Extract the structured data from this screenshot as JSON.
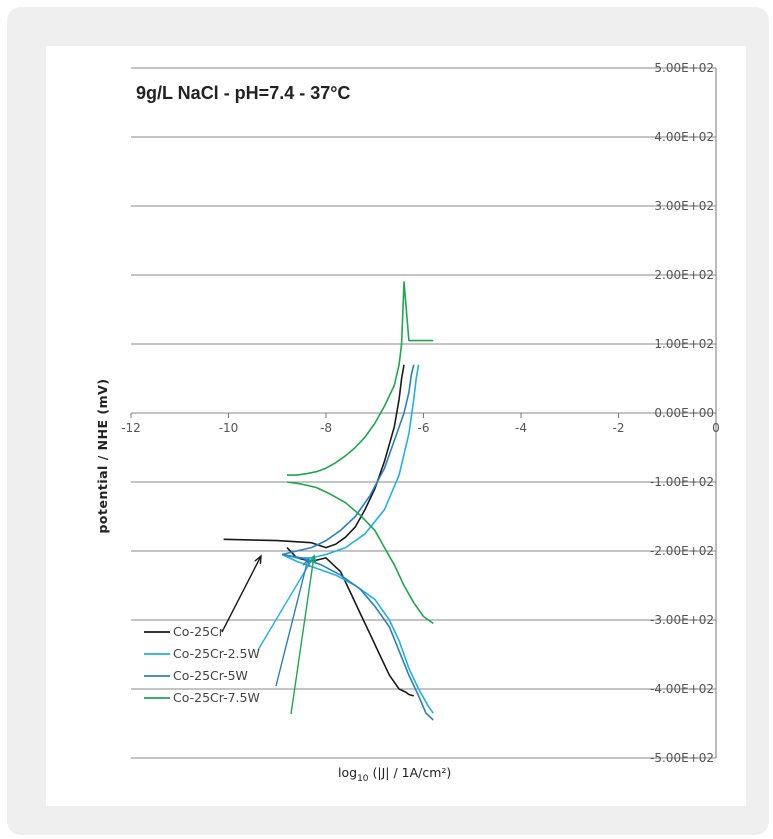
{
  "colors": {
    "co25cr": "#1a1a1a",
    "co25cr_2_5w": "#1fb1e8",
    "co25cr_5w": "#2a7fc4",
    "co25cr_7_5w": "#1da84c",
    "gridline": "#888888",
    "panel_bg": "#efeff0"
  },
  "chart_data": {
    "type": "line",
    "title": "9g/L NaCl - pH=7.4 - 37°C",
    "xlabel": {
      "main": "log",
      "sub": "10",
      "rest": " (|J|  / 1A/cm²)"
    },
    "ylabel": "potential / NHE (mV)",
    "xlim": [
      -12,
      0
    ],
    "ylim": [
      -500,
      500
    ],
    "x_ticks": [
      -12,
      -10,
      -8,
      -6,
      -4,
      -2,
      0
    ],
    "x_tick_labels": [
      "-12",
      "-10",
      "-8",
      "-6",
      "-4",
      "-2",
      "0"
    ],
    "y_ticks": [
      500,
      400,
      300,
      200,
      100,
      0,
      -100,
      -200,
      -300,
      -400,
      -500
    ],
    "y_tick_labels": [
      "5.00E+02",
      "4.00E+02",
      "3.00E+02",
      "2.00E+02",
      "1.00E+02",
      "0.00E+00",
      "-1.00E+02",
      "-2.00E+02",
      "-3.00E+02",
      "-4.00E+02",
      "-5.00E+02"
    ],
    "grid": true,
    "legend_position": "bottom-left",
    "series": [
      {
        "name": "Co-25Cr",
        "x": [
          -10.1,
          -9.0,
          -8.3,
          -8.0,
          -7.8,
          -7.6,
          -7.4,
          -7.2,
          -7.0,
          -6.8,
          -6.6,
          -6.5,
          -6.45,
          -6.4
        ],
        "y": [
          -183,
          -185,
          -188,
          -195,
          -190,
          -180,
          -165,
          -140,
          -110,
          -70,
          -20,
          20,
          50,
          70
        ]
      },
      {
        "name": "Co-25Cr",
        "x": [
          -8.8,
          -8.6,
          -8.3,
          -8.0,
          -7.7,
          -7.5,
          -7.3,
          -7.1,
          -6.9,
          -6.7,
          -6.5,
          -6.35,
          -6.3,
          -6.2
        ],
        "y": [
          -195,
          -210,
          -215,
          -210,
          -230,
          -260,
          -290,
          -320,
          -350,
          -380,
          -400,
          -405,
          -408,
          -410
        ]
      },
      {
        "name": "Co-25Cr-2.5W",
        "x": [
          -8.9,
          -8.6,
          -8.3,
          -8.0,
          -7.6,
          -7.2,
          -6.8,
          -6.5,
          -6.3,
          -6.2,
          -6.15,
          -6.1
        ],
        "y": [
          -205,
          -210,
          -210,
          -205,
          -195,
          -175,
          -140,
          -90,
          -30,
          20,
          50,
          70
        ]
      },
      {
        "name": "Co-25Cr-2.5W",
        "x": [
          -8.9,
          -8.6,
          -8.2,
          -7.8,
          -7.4,
          -7.0,
          -6.7,
          -6.5,
          -6.3,
          -6.1,
          -5.9,
          -5.8
        ],
        "y": [
          -205,
          -215,
          -225,
          -235,
          -250,
          -270,
          -300,
          -330,
          -370,
          -400,
          -425,
          -435
        ]
      },
      {
        "name": "Co-25Cr-5W",
        "x": [
          -8.9,
          -8.6,
          -8.3,
          -8.0,
          -7.7,
          -7.4,
          -7.1,
          -6.8,
          -6.6,
          -6.4,
          -6.3,
          -6.25,
          -6.2
        ],
        "y": [
          -205,
          -200,
          -195,
          -185,
          -170,
          -150,
          -120,
          -80,
          -40,
          0,
          30,
          55,
          70
        ]
      },
      {
        "name": "Co-25Cr-5W",
        "x": [
          -8.9,
          -8.5,
          -8.1,
          -7.7,
          -7.3,
          -7.0,
          -6.7,
          -6.5,
          -6.3,
          -6.1,
          -5.95,
          -5.8
        ],
        "y": [
          -205,
          -210,
          -220,
          -235,
          -255,
          -280,
          -310,
          -345,
          -380,
          -410,
          -435,
          -445
        ]
      },
      {
        "name": "Co-25Cr-7.5W",
        "x": [
          -8.8,
          -8.6,
          -8.4,
          -8.2,
          -8.0,
          -7.8,
          -7.6,
          -7.4,
          -7.2,
          -7.0,
          -6.8,
          -6.6,
          -6.5,
          -6.45,
          -6.4,
          -6.3,
          -5.8
        ],
        "y": [
          -90,
          -90,
          -88,
          -85,
          -80,
          -72,
          -62,
          -50,
          -35,
          -15,
          10,
          40,
          70,
          100,
          190,
          105,
          105
        ]
      },
      {
        "name": "Co-25Cr-7.5W",
        "x": [
          -8.8,
          -8.5,
          -8.2,
          -7.9,
          -7.6,
          -7.3,
          -7.0,
          -6.8,
          -6.6,
          -6.4,
          -6.2,
          -6.0,
          -5.8
        ],
        "y": [
          -100,
          -103,
          -108,
          -118,
          -130,
          -148,
          -170,
          -195,
          -220,
          -250,
          -275,
          -295,
          -305
        ]
      }
    ],
    "legend": [
      {
        "label": "Co-25Cr",
        "color": "#1a1a1a"
      },
      {
        "label": "Co-25Cr-2.5W",
        "color": "#1fb1e8"
      },
      {
        "label": "Co-25Cr-5W",
        "color": "#2a7fc4"
      },
      {
        "label": "Co-25Cr-7.5W",
        "color": "#1da84c"
      }
    ]
  }
}
